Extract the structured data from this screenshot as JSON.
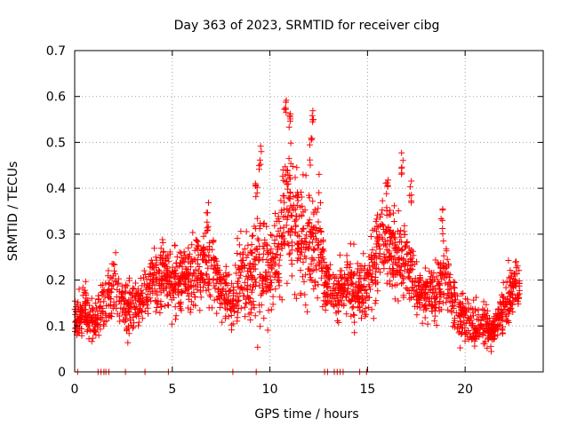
{
  "chart_data": {
    "type": "scatter",
    "title": "Day 363 of 2023, SRMTID for receiver cibg",
    "xlabel": "GPS time / hours",
    "ylabel": "SRMTID / TECUs",
    "xlim": [
      0,
      24
    ],
    "ylim": [
      0,
      0.7
    ],
    "xticks": [
      0,
      5,
      10,
      15,
      20
    ],
    "yticks": [
      0,
      0.1,
      0.2,
      0.3,
      0.4,
      0.5,
      0.6,
      0.7
    ],
    "xtick_labels": [
      "0",
      "5",
      "10",
      "15",
      "20"
    ],
    "ytick_labels": [
      "0",
      "0.1",
      "0.2",
      "0.3",
      "0.4",
      "0.5",
      "0.6",
      "0.7"
    ],
    "grid": true,
    "marker": "+",
    "color": "#ff0000",
    "profile": [
      [
        0.0,
        0.11,
        0.03
      ],
      [
        0.5,
        0.14,
        0.04
      ],
      [
        1.0,
        0.1,
        0.03
      ],
      [
        1.5,
        0.15,
        0.04
      ],
      [
        2.0,
        0.18,
        0.05
      ],
      [
        2.5,
        0.15,
        0.04
      ],
      [
        3.0,
        0.14,
        0.04
      ],
      [
        3.5,
        0.16,
        0.04
      ],
      [
        4.0,
        0.2,
        0.05
      ],
      [
        4.5,
        0.21,
        0.05
      ],
      [
        5.0,
        0.2,
        0.05
      ],
      [
        5.5,
        0.21,
        0.05
      ],
      [
        6.0,
        0.2,
        0.05
      ],
      [
        6.5,
        0.23,
        0.06
      ],
      [
        7.0,
        0.23,
        0.06
      ],
      [
        7.5,
        0.18,
        0.05
      ],
      [
        8.0,
        0.14,
        0.04
      ],
      [
        8.5,
        0.22,
        0.07
      ],
      [
        9.0,
        0.19,
        0.06
      ],
      [
        9.5,
        0.25,
        0.09
      ],
      [
        10.0,
        0.2,
        0.06
      ],
      [
        10.5,
        0.28,
        0.09
      ],
      [
        11.0,
        0.36,
        0.11
      ],
      [
        11.5,
        0.28,
        0.08
      ],
      [
        12.0,
        0.27,
        0.09
      ],
      [
        12.5,
        0.28,
        0.09
      ],
      [
        13.0,
        0.18,
        0.04
      ],
      [
        13.5,
        0.17,
        0.04
      ],
      [
        14.0,
        0.2,
        0.05
      ],
      [
        14.5,
        0.18,
        0.05
      ],
      [
        15.0,
        0.2,
        0.05
      ],
      [
        15.5,
        0.26,
        0.07
      ],
      [
        16.0,
        0.3,
        0.07
      ],
      [
        16.5,
        0.24,
        0.06
      ],
      [
        17.0,
        0.25,
        0.07
      ],
      [
        17.5,
        0.18,
        0.04
      ],
      [
        18.0,
        0.17,
        0.04
      ],
      [
        18.5,
        0.17,
        0.04
      ],
      [
        19.0,
        0.21,
        0.06
      ],
      [
        19.5,
        0.13,
        0.04
      ],
      [
        20.0,
        0.12,
        0.04
      ],
      [
        20.5,
        0.1,
        0.03
      ],
      [
        21.0,
        0.1,
        0.03
      ],
      [
        21.5,
        0.09,
        0.02
      ],
      [
        22.0,
        0.14,
        0.04
      ],
      [
        22.5,
        0.19,
        0.04
      ],
      [
        22.8,
        0.18,
        0.04
      ]
    ],
    "peaks": [
      [
        9.5,
        0.5
      ],
      [
        10.8,
        0.62
      ],
      [
        11.0,
        0.57
      ],
      [
        12.2,
        0.59
      ],
      [
        12.1,
        0.51
      ],
      [
        16.0,
        0.43
      ],
      [
        16.8,
        0.48
      ],
      [
        17.2,
        0.42
      ],
      [
        18.8,
        0.36
      ],
      [
        6.8,
        0.37
      ],
      [
        4.5,
        0.29
      ],
      [
        9.3,
        0.42
      ],
      [
        10.9,
        0.44
      ]
    ],
    "zero_points_x": [
      0.15,
      1.2,
      1.35,
      1.5,
      1.6,
      1.75,
      2.6,
      3.6,
      4.8,
      8.1,
      9.3,
      12.8,
      12.95,
      13.3,
      13.45,
      13.6,
      13.75,
      14.6,
      14.95
    ],
    "x_range": [
      0.0,
      22.8
    ],
    "n_points": 2400
  }
}
